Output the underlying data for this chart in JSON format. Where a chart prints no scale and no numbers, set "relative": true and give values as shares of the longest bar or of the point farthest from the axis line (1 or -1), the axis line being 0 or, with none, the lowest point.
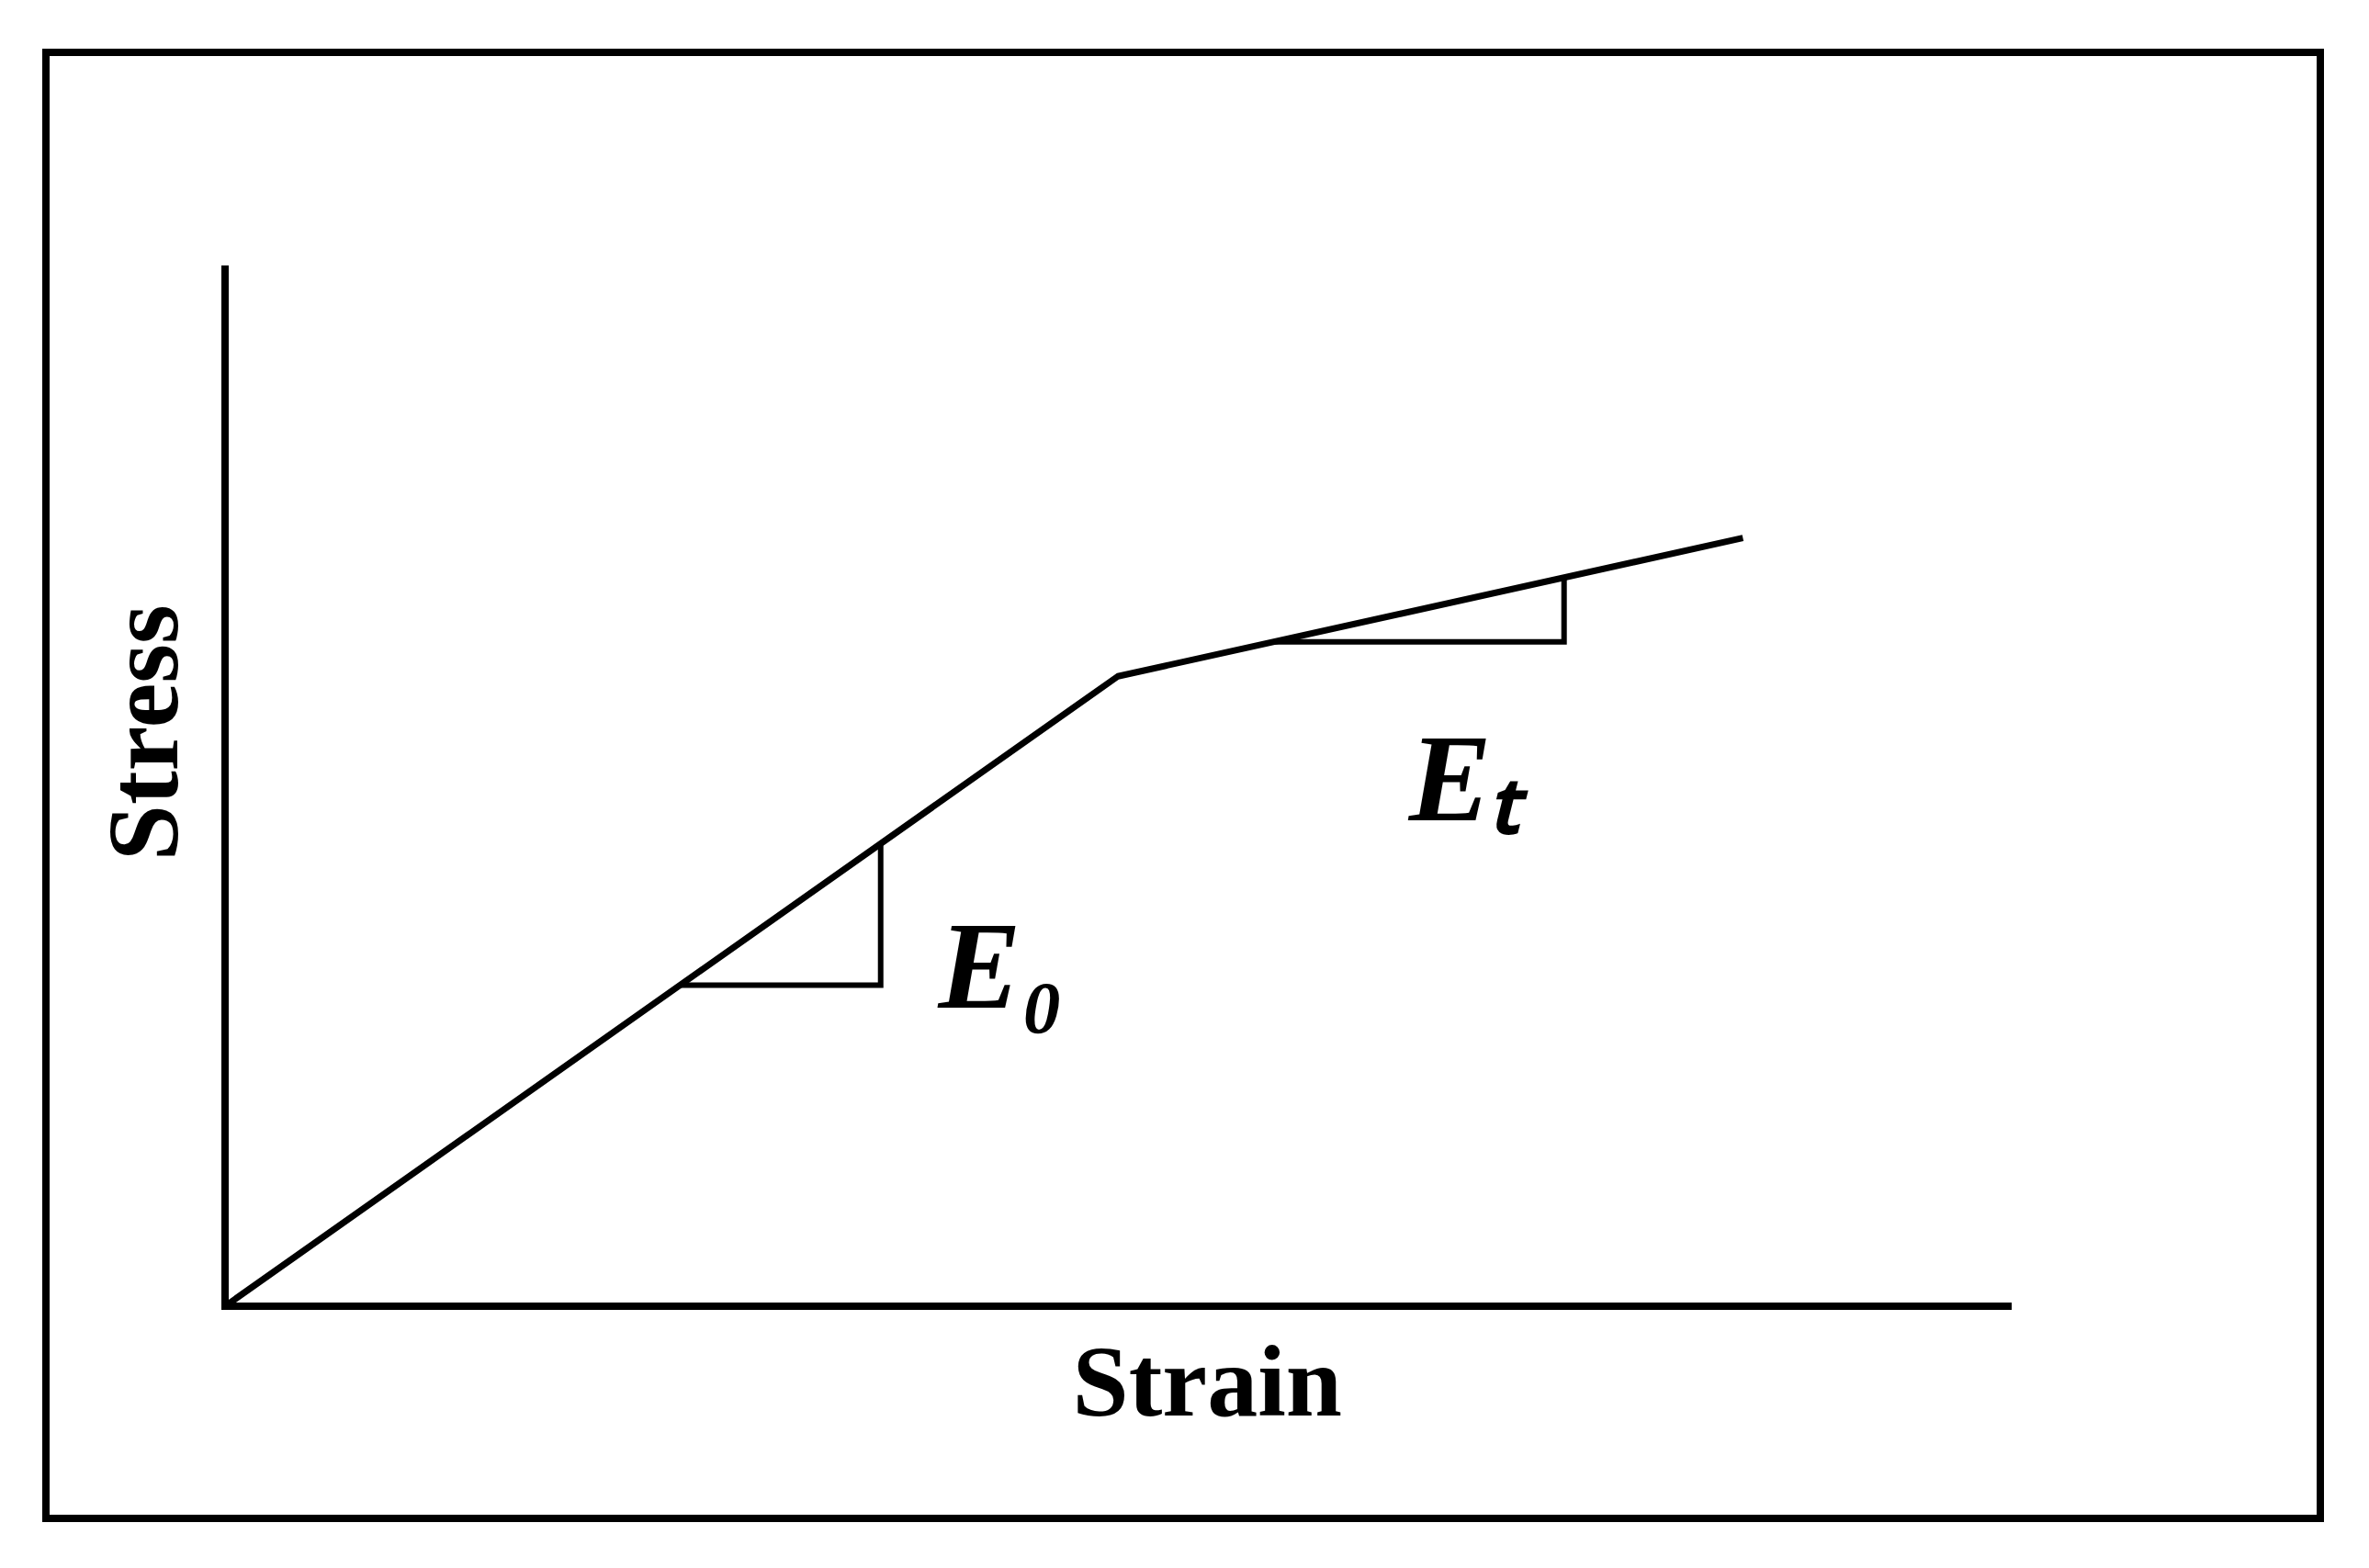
{
  "chart_data": {
    "type": "line",
    "xlabel": "Strain",
    "ylabel": "Stress",
    "relative": true,
    "grid": false,
    "legend": false,
    "categories": [
      null,
      null,
      null,
      null,
      null,
      null,
      null,
      null,
      null,
      null,
      null,
      null,
      null,
      null,
      null,
      null,
      null,
      null,
      null,
      null,
      null
    ],
    "series": [
      {
        "color": "#000000",
        "values": [
          0,
          null,
          null,
          null,
          null,
          null,
          null,
          null,
          null,
          null,
          0.82,
          null,
          null,
          null,
          null,
          null,
          null,
          1,
          null,
          null,
          null
        ]
      }
    ],
    "annotations": [
      "E₀",
      "Eₜ"
    ]
  }
}
